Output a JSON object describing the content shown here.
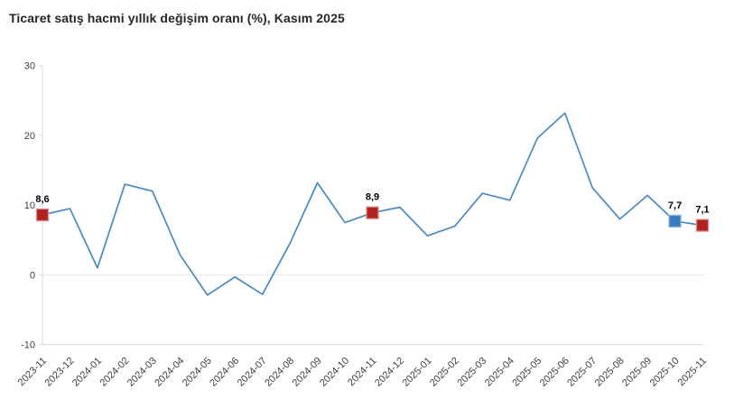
{
  "chart_data": {
    "type": "line",
    "title": "Ticaret satış hacmi yıllık değişim oranı (%), Kasım 2025",
    "categories": [
      "2023-11",
      "2023-12",
      "2024-01",
      "2024-02",
      "2024-03",
      "2024-04",
      "2024-05",
      "2024-06",
      "2024-07",
      "2024-08",
      "2024-09",
      "2024-10",
      "2024-11",
      "2024-12",
      "2025-01",
      "2025-02",
      "2025-03",
      "2025-04",
      "2025-05",
      "2025-06",
      "2025-07",
      "2025-08",
      "2025-09",
      "2025-10",
      "2025-11"
    ],
    "values": [
      8.6,
      9.5,
      1.0,
      13.0,
      12.0,
      2.9,
      -2.9,
      -0.3,
      -2.8,
      4.5,
      13.2,
      7.5,
      8.9,
      9.7,
      5.6,
      7.0,
      11.7,
      10.7,
      19.6,
      23.2,
      12.5,
      8.0,
      11.4,
      7.7,
      7.1
    ],
    "ylim": [
      -10,
      30
    ],
    "yticks": [
      30,
      20,
      10,
      0,
      -10
    ],
    "grid": "zero-line-and-bottom-only",
    "legend": "none",
    "annotations": [
      {
        "index": 0,
        "label": "8,6",
        "marker": "red"
      },
      {
        "index": 12,
        "label": "8,9",
        "marker": "red"
      },
      {
        "index": 23,
        "label": "7,7",
        "marker": "blue"
      },
      {
        "index": 24,
        "label": "7,1",
        "marker": "red"
      }
    ],
    "colors": {
      "line": "#4a8ac4",
      "marker_red": "#b0211f",
      "marker_red_border": "#d98c8a",
      "marker_blue": "#3a7cbe",
      "marker_blue_border": "#8db3d9",
      "axis_line": "#d9d9d9",
      "zero_line": "#e8e8e8",
      "tick_text": "#404040",
      "value_label": "#000000"
    }
  }
}
